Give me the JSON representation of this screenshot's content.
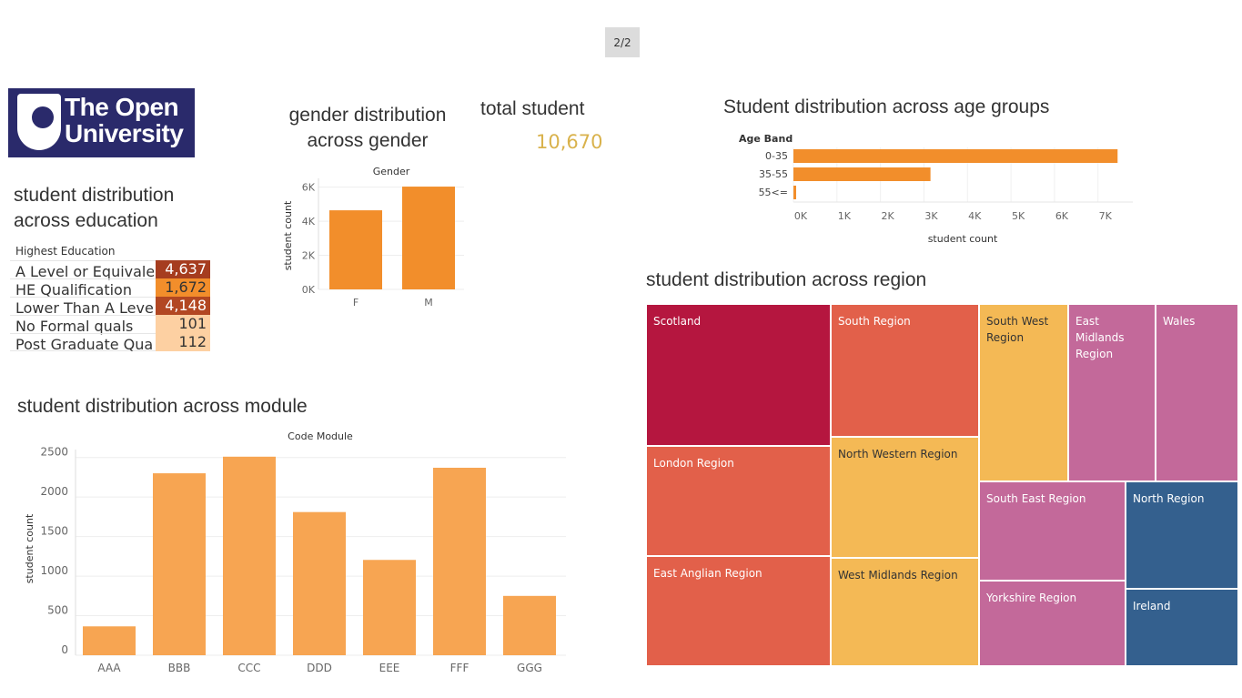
{
  "page_indicator": "2/2",
  "logo": {
    "text_line1": "The Open",
    "text_line2": "University",
    "bg_color": "#2a2a6b"
  },
  "education": {
    "title_line1": "student distribution",
    "title_line2": "across education",
    "header": "Highest Education",
    "rows": [
      {
        "label": "A Level or Equivalent",
        "value": "4,637",
        "color": "#a63d1f",
        "text_color": "#ffffff"
      },
      {
        "label": "HE Qualification",
        "value": "1,672",
        "color": "#f28e2b",
        "text_color": "#333333"
      },
      {
        "label": "Lower Than A Level",
        "value": "4,148",
        "color": "#b24722",
        "text_color": "#ffffff"
      },
      {
        "label": "No Formal quals",
        "value": "101",
        "color": "#fdd0a2",
        "text_color": "#333333"
      },
      {
        "label": "Post Graduate Qualificati..",
        "value": "112",
        "color": "#fdd0a2",
        "text_color": "#333333"
      }
    ]
  },
  "gender": {
    "title_line1": "gender distribution",
    "title_line2": "across gender"
  },
  "total": {
    "label": "total student",
    "value": "10,670"
  },
  "age": {
    "title": "Student distribution across age groups"
  },
  "module": {
    "title": "student distribution across module"
  },
  "region": {
    "title": "student distribution across region",
    "cells": [
      {
        "label": "Scotland",
        "color": "#b5163f",
        "text_color": "#ffffff"
      },
      {
        "label": "South Region",
        "color": "#e2604a",
        "text_color": "#ffffff"
      },
      {
        "label": "South West Region",
        "color": "#f4b955",
        "text_color": "#333333"
      },
      {
        "label": "East Midlands Region",
        "color": "#c3699a",
        "text_color": "#ffffff"
      },
      {
        "label": "Wales",
        "color": "#c3699a",
        "text_color": "#ffffff"
      },
      {
        "label": "London Region",
        "color": "#e2604a",
        "text_color": "#ffffff"
      },
      {
        "label": "North Western Region",
        "color": "#f4b955",
        "text_color": "#333333"
      },
      {
        "label": "South East Region",
        "color": "#c3699a",
        "text_color": "#ffffff"
      },
      {
        "label": "North Region",
        "color": "#34608e",
        "text_color": "#ffffff"
      },
      {
        "label": "East Anglian Region",
        "color": "#e2604a",
        "text_color": "#ffffff"
      },
      {
        "label": "West Midlands Region",
        "color": "#f4b955",
        "text_color": "#333333"
      },
      {
        "label": "Yorkshire Region",
        "color": "#c3699a",
        "text_color": "#ffffff"
      },
      {
        "label": "Ireland",
        "color": "#34608e",
        "text_color": "#ffffff"
      }
    ]
  },
  "chart_data": [
    {
      "id": "gender",
      "type": "bar",
      "title": "Gender",
      "categories": [
        "F",
        "M"
      ],
      "values": [
        4640,
        6030
      ],
      "xlabel": "",
      "ylabel": "student count",
      "yticks": [
        0,
        2000,
        4000,
        6000
      ],
      "ytick_labels": [
        "0K",
        "2K",
        "4K",
        "6K"
      ],
      "ylim": [
        0,
        6300
      ],
      "color": "#f28e2b",
      "grid": true
    },
    {
      "id": "age",
      "type": "bar",
      "orientation": "horizontal",
      "title": "Age Band",
      "categories": [
        "0-35",
        "35-55",
        "55<="
      ],
      "values": [
        7450,
        3150,
        60
      ],
      "xlabel": "student count",
      "xticks": [
        0,
        1000,
        2000,
        3000,
        4000,
        5000,
        6000,
        7000
      ],
      "xtick_labels": [
        "0K",
        "1K",
        "2K",
        "3K",
        "4K",
        "5K",
        "6K",
        "7K"
      ],
      "xlim": [
        0,
        7800
      ],
      "color": "#f28e2b",
      "grid": true
    },
    {
      "id": "module",
      "type": "bar",
      "title": "Code Module",
      "categories": [
        "AAA",
        "BBB",
        "CCC",
        "DDD",
        "EEE",
        "FFF",
        "GGG"
      ],
      "values": [
        365,
        2300,
        2510,
        1810,
        1205,
        2370,
        750
      ],
      "xlabel": "",
      "ylabel": "student count",
      "yticks": [
        0,
        500,
        1000,
        1500,
        2000,
        2500
      ],
      "ylim": [
        0,
        2600
      ],
      "color": "#f7a552",
      "grid": true
    },
    {
      "id": "region",
      "type": "treemap",
      "title": "student distribution across region",
      "categories": [
        "Scotland",
        "South Region",
        "South West Region",
        "East Midlands Region",
        "Wales",
        "London Region",
        "North Western Region",
        "South East Region",
        "North Region",
        "East Anglian Region",
        "West Midlands Region",
        "Yorkshire Region",
        "Ireland"
      ]
    }
  ]
}
